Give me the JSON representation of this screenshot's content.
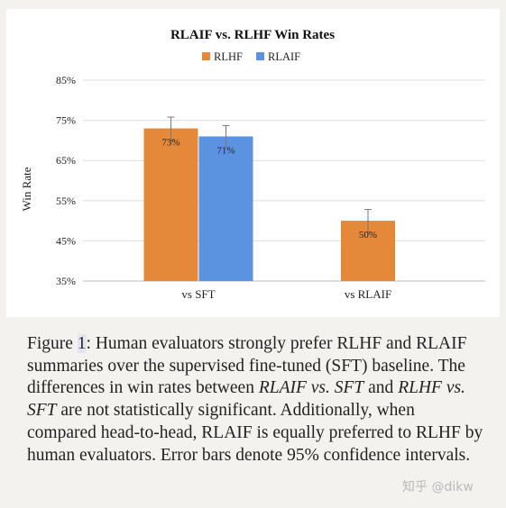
{
  "chart_data": {
    "type": "bar",
    "title": "RLAIF vs. RLHF Win Rates",
    "ylabel": "Win Rate",
    "xlabel": "",
    "categories": [
      "vs SFT",
      "vs RLAIF"
    ],
    "series": [
      {
        "name": "RLHF",
        "color": "#e4883a",
        "values": [
          73,
          50
        ],
        "labels": [
          "73%",
          "50%"
        ],
        "error_bars": [
          2.8,
          2.8
        ]
      },
      {
        "name": "RLAIF",
        "color": "#5b93e0",
        "values": [
          71,
          null
        ],
        "labels": [
          "71%",
          null
        ],
        "error_bars": [
          2.7,
          null
        ]
      }
    ],
    "ylim": [
      35,
      85
    ],
    "yticks": [
      35,
      45,
      55,
      65,
      75,
      85
    ],
    "ytick_labels": [
      "35%",
      "45%",
      "55%",
      "65%",
      "75%",
      "85%"
    ],
    "grid": true,
    "legend": "top-center"
  },
  "caption": {
    "figure_label": "Figure ",
    "figure_number": "1",
    "part1": ": Human evaluators strongly prefer RLHF and RLAIF summaries over the supervised fine-tuned (SFT) baseline. The differences in win rates between ",
    "em1": "RLAIF vs. SFT",
    "part2": " and ",
    "em2": "RLHF vs. SFT",
    "part3": " are not statistically significant. Additionally, when compared head-to-head, RLAIF is equally preferred to RLHF by human evaluators. Error bars denote 95% confidence intervals."
  },
  "watermark": "知乎 @dikw"
}
